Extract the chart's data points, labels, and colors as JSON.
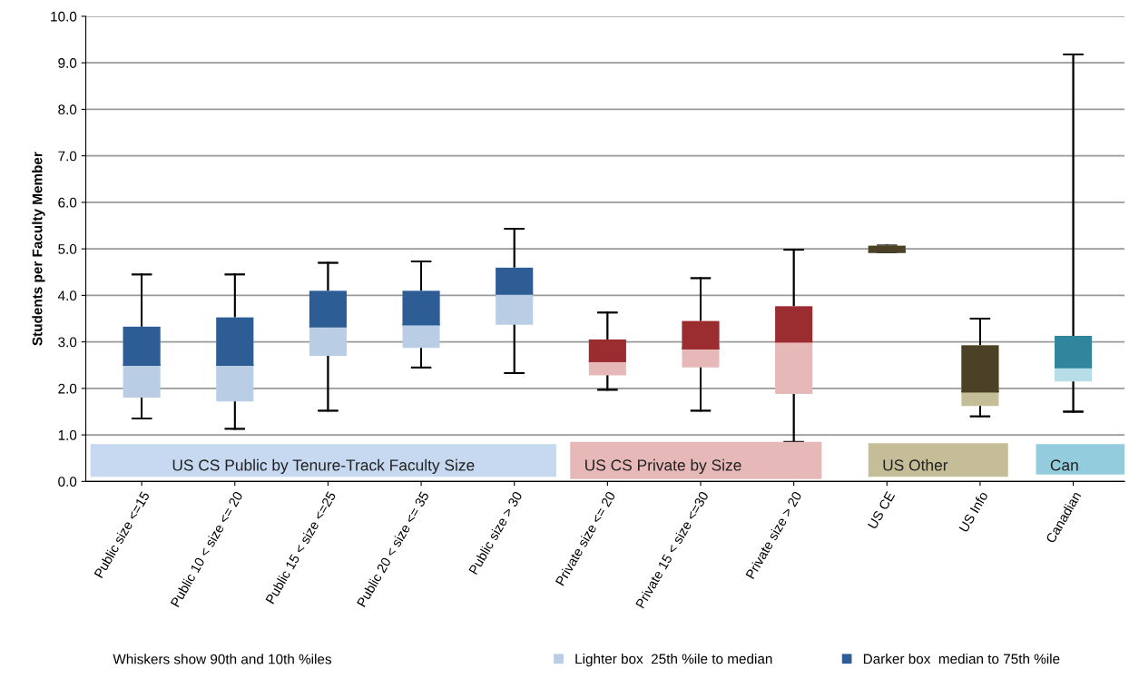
{
  "chart_data": {
    "type": "box",
    "ylabel": "Students per Faculty Member",
    "categories": [
      "Public size <=15",
      "Public 10 < size <= 20",
      "Public 15 < size <=25",
      "Public 20 < size <= 35",
      "Public size > 30",
      "Private size <= 20",
      "Private 15 < size <=30",
      "Private size > 20",
      "US CE",
      "US Info",
      "Canadian"
    ],
    "series": [
      {
        "name": "Lighter box  25th %ile to median",
        "colors": [
          "#b9cde5",
          "#b9cde5",
          "#b9cde5",
          "#b9cde5",
          "#b9cde5",
          "#e6b9b8",
          "#e6b9b8",
          "#e6b9b8",
          "#c4bd97",
          "#c4bd97",
          "#b7dee8"
        ],
        "boxes": [
          {
            "low": 1.35,
            "q1": 1.8,
            "median": 2.5,
            "q3": 3.33,
            "high": 4.45
          },
          {
            "low": 1.13,
            "q1": 1.72,
            "median": 2.5,
            "q3": 3.53,
            "high": 4.45
          },
          {
            "low": 1.52,
            "q1": 2.7,
            "median": 3.33,
            "q3": 4.1,
            "high": 4.7
          },
          {
            "low": 2.45,
            "q1": 2.87,
            "median": 3.37,
            "q3": 4.1,
            "high": 4.73
          },
          {
            "low": 2.33,
            "q1": 3.37,
            "median": 4.03,
            "q3": 4.6,
            "high": 5.43
          },
          {
            "low": 1.97,
            "q1": 2.28,
            "median": 2.58,
            "q3": 3.05,
            "high": 3.63
          },
          {
            "low": 1.52,
            "q1": 2.45,
            "median": 2.85,
            "q3": 3.45,
            "high": 4.37
          },
          {
            "low": 0.85,
            "q1": 1.88,
            "median": 3.0,
            "q3": 3.77,
            "high": 4.98
          },
          {
            "low": 4.93,
            "q1": 4.93,
            "median": 4.93,
            "q3": 5.07,
            "high": 5.07
          },
          {
            "low": 1.4,
            "q1": 1.62,
            "median": 1.93,
            "q3": 2.93,
            "high": 3.5
          },
          {
            "low": 1.5,
            "q1": 2.15,
            "median": 2.45,
            "q3": 3.13,
            "high": 9.18
          }
        ]
      },
      {
        "name": "Darker box  median to 75th %ile",
        "colors": [
          "#2e5c94",
          "#2e5c94",
          "#2e5c94",
          "#2e5c94",
          "#2e5c94",
          "#9b2d30",
          "#9b2d30",
          "#9b2d30",
          "#4a4127",
          "#4a4127",
          "#31859c"
        ],
        "boxes": [
          {
            "low": 1.35,
            "q1": 1.8,
            "median": 2.5,
            "q3": 3.33,
            "high": 4.45
          },
          {
            "low": 1.13,
            "q1": 1.72,
            "median": 2.5,
            "q3": 3.53,
            "high": 4.45
          },
          {
            "low": 1.52,
            "q1": 2.7,
            "median": 3.33,
            "q3": 4.1,
            "high": 4.7
          },
          {
            "low": 2.45,
            "q1": 2.87,
            "median": 3.37,
            "q3": 4.1,
            "high": 4.73
          },
          {
            "low": 2.33,
            "q1": 3.37,
            "median": 4.03,
            "q3": 4.6,
            "high": 5.43
          },
          {
            "low": 1.97,
            "q1": 2.28,
            "median": 2.58,
            "q3": 3.05,
            "high": 3.63
          },
          {
            "low": 1.52,
            "q1": 2.45,
            "median": 2.85,
            "q3": 3.45,
            "high": 4.37
          },
          {
            "low": 0.85,
            "q1": 1.88,
            "median": 3.0,
            "q3": 3.77,
            "high": 4.98
          },
          {
            "low": 4.93,
            "q1": 4.93,
            "median": 4.93,
            "q3": 5.07,
            "high": 5.07
          },
          {
            "low": 1.4,
            "q1": 1.62,
            "median": 1.93,
            "q3": 2.93,
            "high": 3.5
          },
          {
            "low": 1.5,
            "q1": 2.15,
            "median": 2.45,
            "q3": 3.13,
            "high": 9.18
          }
        ]
      }
    ],
    "ylim": [
      0,
      10
    ],
    "yticks": [
      {
        "value": 0,
        "label": "0.0"
      },
      {
        "value": 1,
        "label": "1.0"
      },
      {
        "value": 2,
        "label": "2.0"
      },
      {
        "value": 3,
        "label": "3.0"
      },
      {
        "value": 4,
        "label": "4.0"
      },
      {
        "value": 5,
        "label": "5.0"
      },
      {
        "value": 6,
        "label": "6.0"
      },
      {
        "value": 7,
        "label": "7.0"
      },
      {
        "value": 8,
        "label": "8.0"
      },
      {
        "value": 9,
        "label": "9.0"
      },
      {
        "value": 10,
        "label": "10.0"
      }
    ],
    "grid": "y",
    "legend": "bottom",
    "annotations": [
      "US CS Public by Tenure-Track Faculty Size",
      "US CS Private by Size",
      "US Other",
      "Can",
      "Whiskers show 90th and 10th %iles"
    ]
  }
}
